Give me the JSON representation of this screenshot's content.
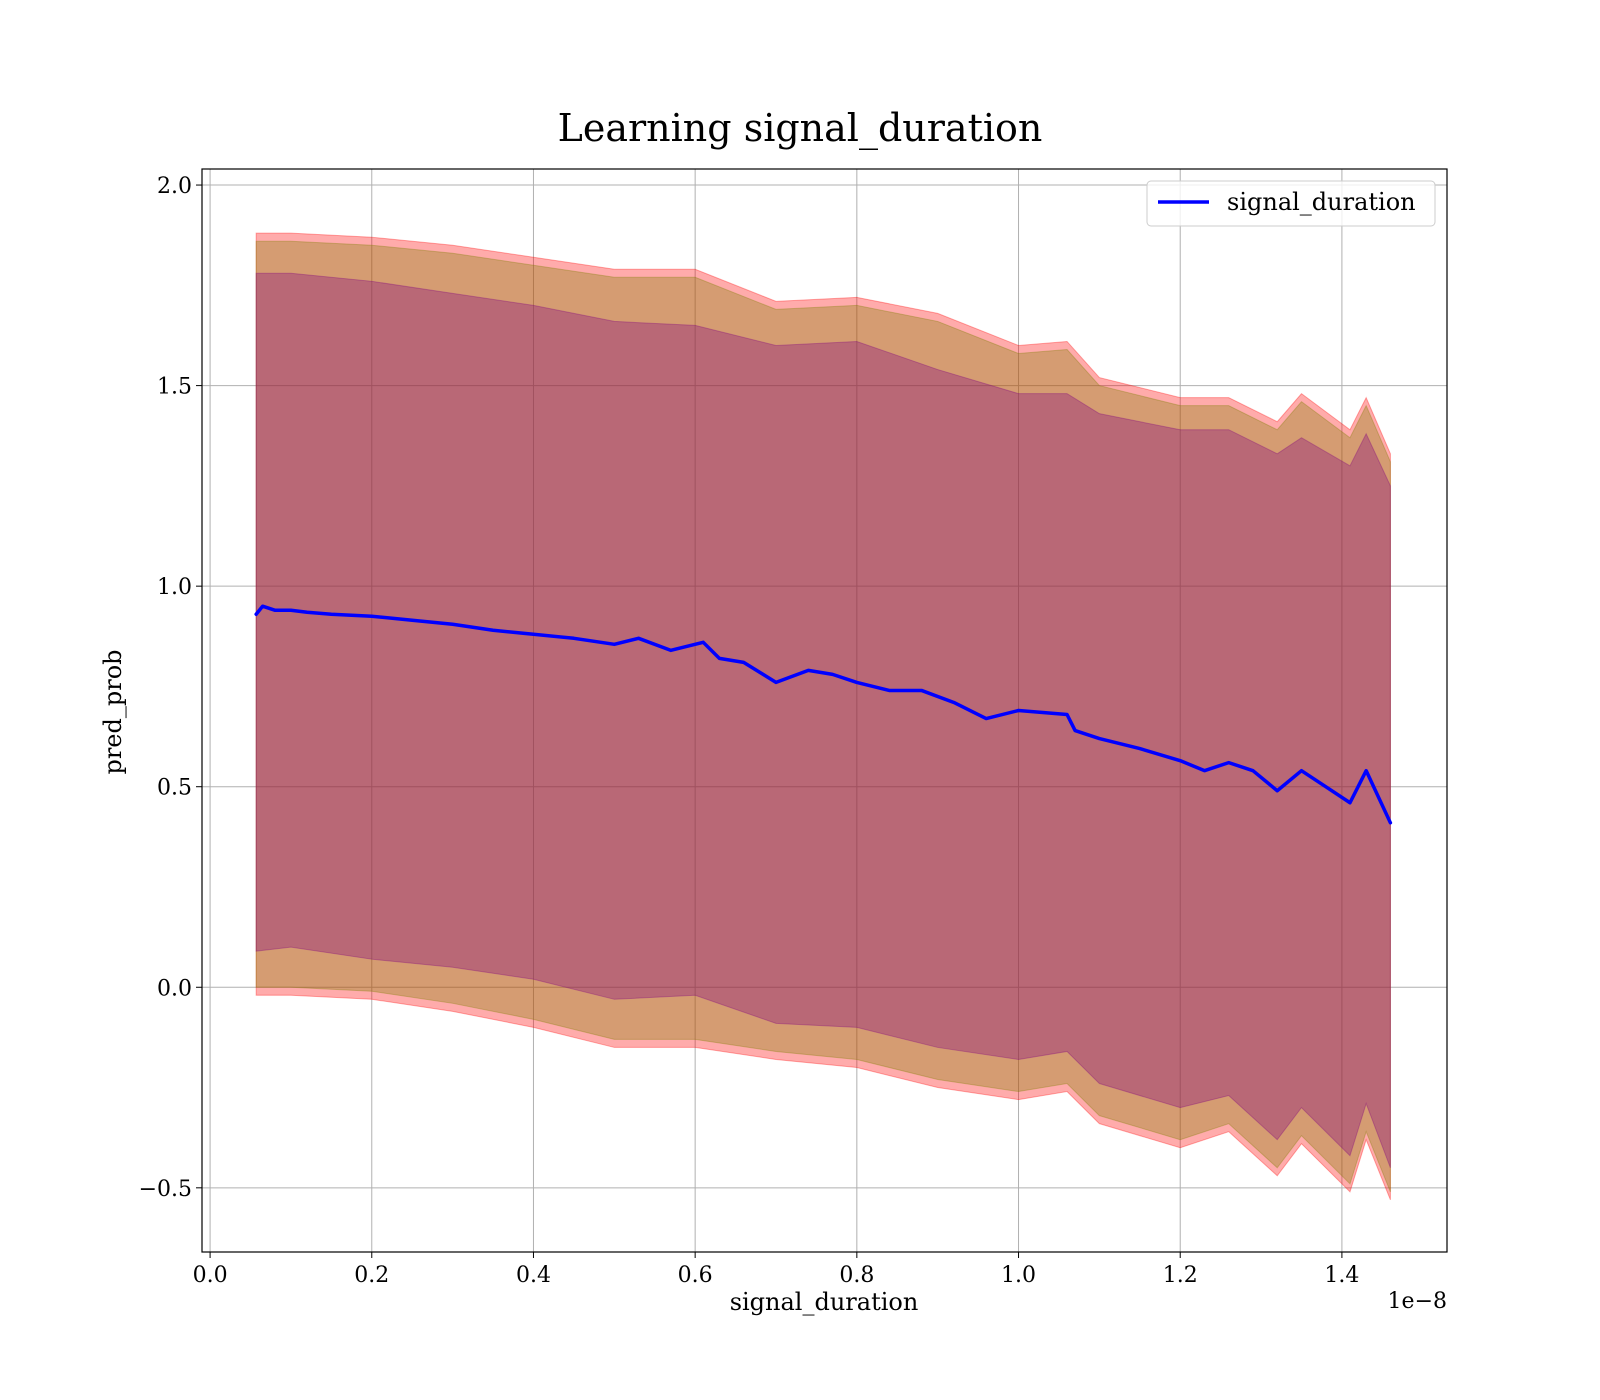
{
  "chart_data": {
    "type": "line",
    "title": "Learning signal_duration",
    "xlabel": "signal_duration",
    "ylabel": "pred_prob",
    "x_offset_text": "1e−8",
    "xlim": [
      -1e-10,
      1.53e-08
    ],
    "ylim": [
      -0.66,
      2.04
    ],
    "grid": true,
    "legend_placement": "top-right",
    "x_ticks": [
      {
        "value": 0.0,
        "label": "0.0"
      },
      {
        "value": 2e-09,
        "label": "0.2"
      },
      {
        "value": 4e-09,
        "label": "0.4"
      },
      {
        "value": 6e-09,
        "label": "0.6"
      },
      {
        "value": 8e-09,
        "label": "0.8"
      },
      {
        "value": 1e-08,
        "label": "1.0"
      },
      {
        "value": 1.2e-08,
        "label": "1.2"
      },
      {
        "value": 1.4e-08,
        "label": "1.4"
      }
    ],
    "y_ticks": [
      {
        "value": -0.5,
        "label": "−0.5"
      },
      {
        "value": 0.0,
        "label": "0.0"
      },
      {
        "value": 0.5,
        "label": "0.5"
      },
      {
        "value": 1.0,
        "label": "1.0"
      },
      {
        "value": 1.5,
        "label": "1.5"
      },
      {
        "value": 2.0,
        "label": "2.0"
      }
    ],
    "series": [
      {
        "name": "signal_duration",
        "color": "#0000ff",
        "x": [
          5.7e-10,
          6.5e-10,
          8e-10,
          1e-09,
          1.2e-09,
          1.5e-09,
          2e-09,
          2.5e-09,
          3e-09,
          3.5e-09,
          4e-09,
          4.5e-09,
          5e-09,
          5.3e-09,
          5.7e-09,
          6.1e-09,
          6.3e-09,
          6.6e-09,
          7e-09,
          7.4e-09,
          7.7e-09,
          8e-09,
          8.4e-09,
          8.8e-09,
          9.2e-09,
          9.6e-09,
          1e-08,
          1.03e-08,
          1.06e-08,
          1.07e-08,
          1.1e-08,
          1.15e-08,
          1.2e-08,
          1.23e-08,
          1.26e-08,
          1.29e-08,
          1.32e-08,
          1.35e-08,
          1.38e-08,
          1.41e-08,
          1.43e-08,
          1.46e-08
        ],
        "y": [
          0.93,
          0.95,
          0.94,
          0.94,
          0.935,
          0.93,
          0.925,
          0.915,
          0.905,
          0.89,
          0.88,
          0.87,
          0.855,
          0.87,
          0.84,
          0.86,
          0.82,
          0.81,
          0.76,
          0.79,
          0.78,
          0.76,
          0.74,
          0.74,
          0.71,
          0.67,
          0.69,
          0.685,
          0.68,
          0.64,
          0.62,
          0.595,
          0.565,
          0.54,
          0.56,
          0.54,
          0.49,
          0.54,
          0.5,
          0.46,
          0.54,
          0.41
        ]
      }
    ],
    "bands": [
      {
        "color": "#ff0000",
        "opacity": 0.33,
        "x": [
          5.7e-10,
          1e-09,
          2e-09,
          3e-09,
          4e-09,
          5e-09,
          6e-09,
          7e-09,
          8e-09,
          9e-09,
          1e-08,
          1.06e-08,
          1.1e-08,
          1.2e-08,
          1.26e-08,
          1.32e-08,
          1.35e-08,
          1.41e-08,
          1.43e-08,
          1.46e-08
        ],
        "upper": [
          1.88,
          1.88,
          1.87,
          1.85,
          1.82,
          1.79,
          1.79,
          1.71,
          1.72,
          1.68,
          1.6,
          1.61,
          1.52,
          1.47,
          1.47,
          1.41,
          1.48,
          1.39,
          1.47,
          1.33
        ],
        "lower": [
          -0.02,
          -0.02,
          -0.03,
          -0.06,
          -0.1,
          -0.15,
          -0.15,
          -0.18,
          -0.2,
          -0.25,
          -0.28,
          -0.26,
          -0.34,
          -0.4,
          -0.36,
          -0.47,
          -0.39,
          -0.51,
          -0.38,
          -0.53
        ]
      },
      {
        "color": "#808000",
        "opacity": 0.33,
        "x": [
          5.7e-10,
          1e-09,
          2e-09,
          3e-09,
          4e-09,
          5e-09,
          6e-09,
          7e-09,
          8e-09,
          9e-09,
          1e-08,
          1.06e-08,
          1.1e-08,
          1.2e-08,
          1.26e-08,
          1.32e-08,
          1.35e-08,
          1.41e-08,
          1.43e-08,
          1.46e-08
        ],
        "upper": [
          1.86,
          1.86,
          1.85,
          1.83,
          1.8,
          1.77,
          1.77,
          1.69,
          1.7,
          1.66,
          1.58,
          1.59,
          1.5,
          1.45,
          1.45,
          1.39,
          1.46,
          1.37,
          1.45,
          1.31
        ],
        "lower": [
          0.0,
          0.0,
          -0.01,
          -0.04,
          -0.08,
          -0.13,
          -0.13,
          -0.16,
          -0.18,
          -0.23,
          -0.26,
          -0.24,
          -0.32,
          -0.38,
          -0.34,
          -0.45,
          -0.37,
          -0.49,
          -0.36,
          -0.51
        ]
      },
      {
        "color": "#800080",
        "opacity": 0.33,
        "x": [
          5.7e-10,
          1e-09,
          2e-09,
          3e-09,
          4e-09,
          5e-09,
          6e-09,
          7e-09,
          8e-09,
          9e-09,
          1e-08,
          1.06e-08,
          1.1e-08,
          1.2e-08,
          1.26e-08,
          1.32e-08,
          1.35e-08,
          1.41e-08,
          1.43e-08,
          1.46e-08
        ],
        "upper": [
          1.78,
          1.78,
          1.76,
          1.73,
          1.7,
          1.66,
          1.65,
          1.6,
          1.61,
          1.54,
          1.48,
          1.48,
          1.43,
          1.39,
          1.39,
          1.33,
          1.37,
          1.3,
          1.38,
          1.25
        ],
        "lower": [
          0.09,
          0.1,
          0.07,
          0.05,
          0.02,
          -0.03,
          -0.02,
          -0.09,
          -0.1,
          -0.15,
          -0.18,
          -0.16,
          -0.24,
          -0.3,
          -0.27,
          -0.38,
          -0.3,
          -0.42,
          -0.29,
          -0.45
        ]
      }
    ],
    "legend": [
      {
        "label": "signal_duration",
        "color": "#0000ff"
      }
    ]
  }
}
